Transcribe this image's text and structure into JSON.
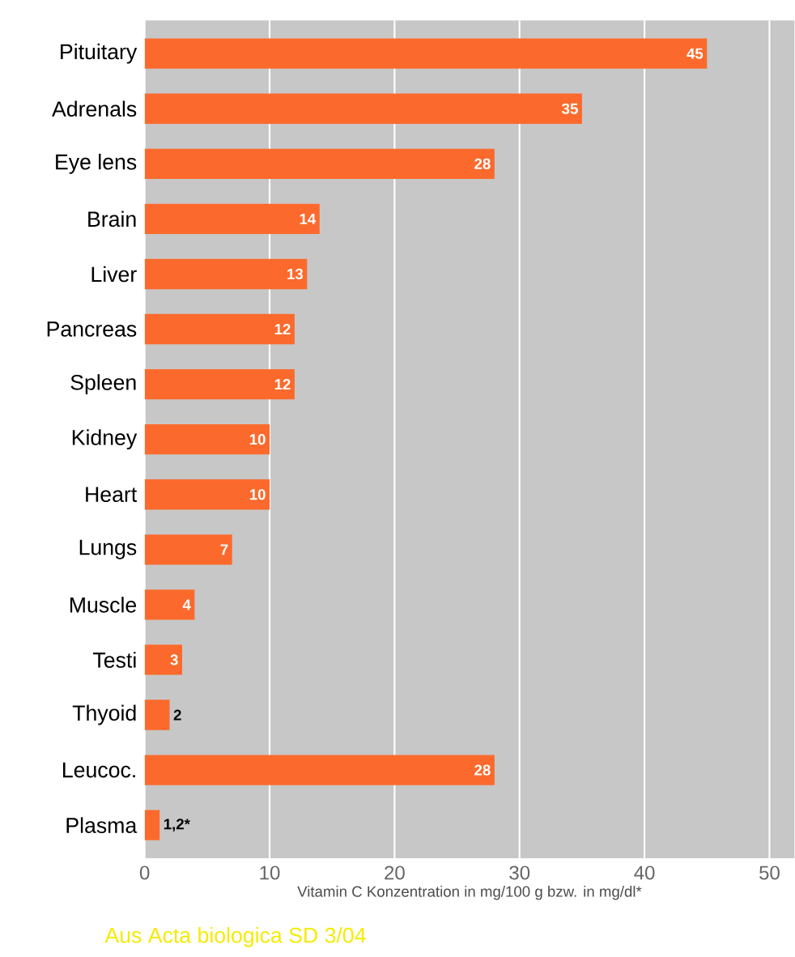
{
  "chart_data": {
    "type": "bar",
    "orientation": "horizontal",
    "categories": [
      "Pituitary",
      "Adrenals",
      "Eye lens",
      "Brain",
      "Liver",
      "Pancreas",
      "Spleen",
      "Kidney",
      "Heart",
      "Lungs",
      "Muscle",
      "Testi",
      "Thyoid",
      "Leucoc.",
      "Plasma"
    ],
    "values": [
      45,
      35,
      28,
      14,
      13,
      12,
      12,
      10,
      10,
      7,
      4,
      3,
      2,
      28,
      1.2
    ],
    "value_labels": [
      "45",
      "35",
      "28",
      "14",
      "13",
      "12",
      "12",
      "10",
      "10",
      "7",
      "4",
      "3",
      "2",
      "28",
      "1,2*"
    ],
    "color": "#fb6a2c",
    "xlim": [
      0,
      52
    ],
    "xticks": [
      0,
      10,
      20,
      30,
      40,
      50
    ],
    "xlabel": "Vitamin C Konzentration in mg/100 g bzw. in mg/dl*",
    "annotations": [
      "Aus Acta biologica SD 3/04"
    ],
    "grid": "x"
  }
}
